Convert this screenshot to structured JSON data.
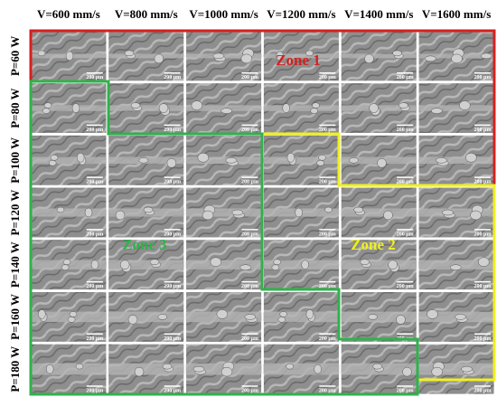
{
  "columns": [
    "V=600 mm/s",
    "V=800 mm/s",
    "V=1000 mm/s",
    "V=1200 mm/s",
    "V=1400 mm/s",
    "V=1600 mm/s"
  ],
  "rows": [
    "P=60 W",
    "P=80 W",
    "P=100 W",
    "P=120 W",
    "P=140 W",
    "P=160 W",
    "P=180 W"
  ],
  "scale_bar": "200 μm",
  "zones": [
    "Zone 1",
    "Zone 2",
    "Zone 3"
  ]
}
